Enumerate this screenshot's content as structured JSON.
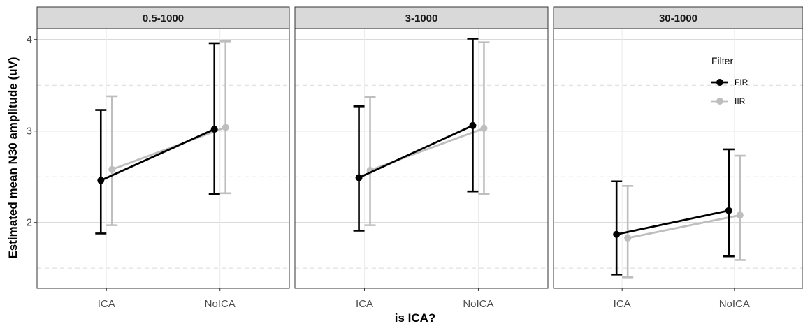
{
  "chart_data": {
    "type": "line",
    "facets": [
      "0.5-1000",
      "3-1000",
      "30-1000"
    ],
    "categories": [
      "ICA",
      "NoICA"
    ],
    "xlabel": "is ICA?",
    "ylabel": "Estimated mean N30 amplitude (uV)",
    "ylim": [
      1.28,
      4.12
    ],
    "y_ticks": [
      2,
      3,
      4
    ],
    "y_tick_labels": [
      "2",
      "3",
      "4"
    ],
    "grid": true,
    "legend": {
      "title": "Filter",
      "placement": "inside top-right of last panel",
      "entries": [
        "FIR",
        "IIR"
      ]
    },
    "colors": {
      "FIR": "#000000",
      "IIR": "#bebebe"
    },
    "series": [
      {
        "name": "FIR",
        "panels": [
          {
            "facet": "0.5-1000",
            "values": [
              2.46,
              3.02
            ],
            "lower": [
              1.88,
              2.31
            ],
            "upper": [
              3.23,
              3.96
            ]
          },
          {
            "facet": "3-1000",
            "values": [
              2.49,
              3.06
            ],
            "lower": [
              1.91,
              2.34
            ],
            "upper": [
              3.27,
              4.01
            ]
          },
          {
            "facet": "30-1000",
            "values": [
              1.87,
              2.13
            ],
            "lower": [
              1.43,
              1.63
            ],
            "upper": [
              2.45,
              2.8
            ]
          }
        ]
      },
      {
        "name": "IIR",
        "panels": [
          {
            "facet": "0.5-1000",
            "values": [
              2.58,
              3.04
            ],
            "lower": [
              1.97,
              2.32
            ],
            "upper": [
              3.38,
              3.98
            ]
          },
          {
            "facet": "3-1000",
            "values": [
              2.57,
              3.03
            ],
            "lower": [
              1.97,
              2.31
            ],
            "upper": [
              3.37,
              3.97
            ]
          },
          {
            "facet": "30-1000",
            "values": [
              1.83,
              2.08
            ],
            "lower": [
              1.4,
              1.59
            ],
            "upper": [
              2.4,
              2.73
            ]
          }
        ]
      }
    ]
  }
}
